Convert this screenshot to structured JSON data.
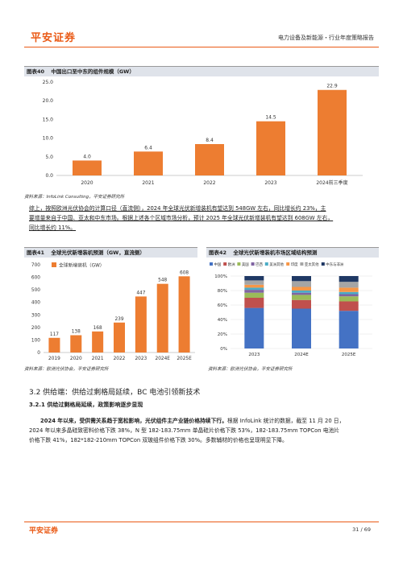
{
  "header": {
    "logo": "平安证券",
    "report_title": "电力设备及新能源・行业年度策略报告"
  },
  "fig40": {
    "label": "图表40",
    "title": "中国出口至中东的组件规模（GW）",
    "source": "资料来源：InfoLink Consulting，平安证券研究所"
  },
  "paragraph1": "综上，按照欧洲光伏协会的计算口径（直流侧），2024 年全球光伏新增装机有望达到 548GW 左右，同比增长约 23%，主要增量来自于中国、亚太和中东市场。根据上述各个区域市场分析，预计 2025 年全球光伏新增装机有望达到 608GW 左右，同比增长约 11%。",
  "paragraph1_lines": [
    "综上，按照欧洲光伏协会的计算口径（直流侧），2024 年全球光伏新增装机有望达到 548GW 左右，同比增长约 23%，主",
    "要增量来自于中国、亚太和中东市场。根据上述各个区域市场分析，预计 2025 年全球光伏新增装机有望达到 608GW 左右，",
    "同比增长约 11%。"
  ],
  "fig41": {
    "label": "图表41",
    "title": "全球光伏新增装机预测（GW，直流侧）",
    "source": "资料来源：欧洲光伏协会，平安证券研究所"
  },
  "fig42": {
    "label": "图表42",
    "title": "全球光伏新增装机市场区域结构预测",
    "source": "资料来源：欧洲光伏协会，平安证券研究所"
  },
  "section": {
    "title": "3.2 供给端：供给过剩格局延续，BC 电池引领新技术",
    "subtitle": "3.2.1 供给过剩格局延续，政策影响逐步显现"
  },
  "paragraph2_bold": "2024 年以来，受供需关系趋于宽松影响，光伏组件主产业链价格持续下行。",
  "paragraph2_lines": [
    "根据 InfoLink 统计的数据，截至 11 月 20 日，",
    "2024 年以来多晶硅致密料价格下跌 38%，N 型 182-183.75mm 单晶硅片价格下跌 53%，182-183.75mm TOPCon 电池片",
    "价格下跌 41%，182*182-210mm TOPCon 双玻组件价格下跌 30%。多数辅材的价格也呈现明显下降。"
  ],
  "footer": {
    "logo": "平安证券",
    "page": "31 / 69"
  },
  "colors": {
    "brand": "#ea5a16",
    "bar": "#ed7d31"
  },
  "chart_data": [
    {
      "type": "bar",
      "title": "中国出口至中东的组件规模（GW）",
      "categories": [
        "2020",
        "2021",
        "2022",
        "2023",
        "2024前三季度"
      ],
      "values": [
        4.0,
        6.4,
        8.4,
        14.5,
        22.9
      ],
      "value_labels": [
        "4.0",
        "6.4",
        "8.4",
        "14.5",
        "22.9"
      ],
      "ylim": [
        0,
        25
      ],
      "yticks": [
        "0.0",
        "5.0",
        "10.0",
        "15.0",
        "20.0",
        "25.0"
      ],
      "grid": false
    },
    {
      "type": "bar",
      "title": "全球光伏新增装机预测（GW，直流侧）",
      "categories": [
        "2019",
        "2020",
        "2021",
        "2022",
        "2023",
        "2024E",
        "2025E"
      ],
      "values": [
        117,
        138,
        168,
        239,
        447,
        548,
        608
      ],
      "ylim": [
        0,
        700
      ],
      "yticks": [
        "0",
        "100",
        "200",
        "300",
        "400",
        "500",
        "600",
        "700"
      ],
      "series": [
        {
          "name": "全球新增装机（GW）",
          "values": [
            117,
            138,
            168,
            239,
            447,
            548,
            608
          ]
        }
      ],
      "legend": "top-left",
      "grid": false
    },
    {
      "type": "bar",
      "title": "全球光伏新增装机市场区域结构预测",
      "categories": [
        "2023",
        "2024E",
        "2025E"
      ],
      "ylim": [
        0,
        100
      ],
      "yticks": [
        "0%",
        "20%",
        "40%",
        "60%",
        "80%",
        "100%"
      ],
      "stacked": true,
      "series": [
        {
          "name": "中国",
          "color": "#4472c4",
          "values": [
            56,
            55,
            52
          ]
        },
        {
          "name": "欧洲",
          "color": "#c0504d",
          "values": [
            14,
            12,
            13
          ]
        },
        {
          "name": "美国",
          "color": "#9bbb59",
          "values": [
            7,
            7,
            7
          ]
        },
        {
          "name": "巴西",
          "color": "#8064a2",
          "values": [
            4,
            3,
            3
          ]
        },
        {
          "name": "美洲其他",
          "color": "#4bacc6",
          "values": [
            3,
            3,
            3
          ]
        },
        {
          "name": "印度",
          "color": "#f79646",
          "values": [
            4,
            5,
            6
          ]
        },
        {
          "name": "亚太其他",
          "color": "#a5a5a5",
          "values": [
            6,
            8,
            8
          ]
        },
        {
          "name": "中东与非洲",
          "color": "#1f3864",
          "values": [
            6,
            7,
            8
          ]
        }
      ],
      "legend": "top",
      "grid": true
    }
  ]
}
